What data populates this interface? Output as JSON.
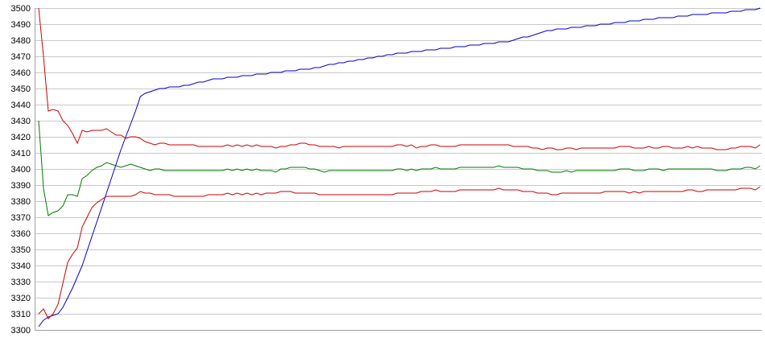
{
  "chart_data": {
    "type": "line",
    "title": "",
    "xlabel": "",
    "ylabel": "",
    "ylim": [
      3300,
      3500
    ],
    "yticks": [
      3300,
      3310,
      3320,
      3330,
      3340,
      3350,
      3360,
      3370,
      3380,
      3390,
      3400,
      3410,
      3420,
      3430,
      3440,
      3450,
      3460,
      3470,
      3480,
      3490,
      3500
    ],
    "grid": "horizontal",
    "legend": "none",
    "x": [
      0,
      1,
      2,
      3,
      4,
      5,
      6,
      7,
      8,
      9,
      10,
      11,
      12,
      13,
      14,
      15,
      16,
      17,
      18,
      19,
      20,
      21,
      22,
      23,
      24,
      25,
      26,
      27,
      28,
      29,
      30,
      31,
      32,
      33,
      34,
      35,
      36,
      37,
      38,
      39,
      40,
      41,
      42,
      43,
      44,
      45,
      46,
      47,
      48,
      49,
      50,
      51,
      52,
      53,
      54,
      55,
      56,
      57,
      58,
      59,
      60,
      61,
      62,
      63,
      64,
      65,
      66,
      67,
      68,
      69,
      70,
      71,
      72,
      73,
      74,
      75,
      76,
      77,
      78,
      79,
      80,
      81,
      82,
      83,
      84,
      85,
      86,
      87,
      88,
      89,
      90,
      91,
      92,
      93,
      94,
      95,
      96,
      97,
      98,
      99,
      100,
      101,
      102,
      103,
      104,
      105,
      106,
      107,
      108,
      109,
      110,
      111,
      112,
      113,
      114,
      115,
      116,
      117,
      118,
      119,
      120,
      121,
      122,
      123,
      124,
      125,
      126,
      127,
      128,
      129,
      130,
      131,
      132,
      133,
      134,
      135,
      136,
      137,
      138,
      139,
      140,
      141,
      142,
      143,
      144,
      145,
      146,
      147,
      148,
      149
    ],
    "series": [
      {
        "color": "#0000cc",
        "values": [
          3302,
          3306,
          3308,
          3309,
          3310,
          3314,
          3320,
          3326,
          3333,
          3340,
          3349,
          3358,
          3367,
          3376,
          3385,
          3394,
          3403,
          3412,
          3420,
          3428,
          3436,
          3445,
          3447,
          3448,
          3449,
          3450,
          3450,
          3451,
          3451,
          3451,
          3452,
          3452,
          3453,
          3454,
          3454,
          3455,
          3456,
          3456,
          3456,
          3457,
          3457,
          3457,
          3458,
          3458,
          3458,
          3459,
          3459,
          3459,
          3460,
          3460,
          3460,
          3461,
          3461,
          3461,
          3462,
          3462,
          3462,
          3463,
          3463,
          3464,
          3465,
          3465,
          3466,
          3466,
          3467,
          3467,
          3468,
          3468,
          3469,
          3469,
          3470,
          3470,
          3471,
          3471,
          3472,
          3472,
          3472,
          3473,
          3473,
          3473,
          3474,
          3474,
          3474,
          3475,
          3475,
          3475,
          3476,
          3476,
          3476,
          3477,
          3477,
          3477,
          3478,
          3478,
          3478,
          3479,
          3479,
          3479,
          3480,
          3481,
          3482,
          3482,
          3483,
          3484,
          3485,
          3486,
          3486,
          3487,
          3487,
          3487,
          3488,
          3488,
          3488,
          3489,
          3489,
          3489,
          3490,
          3490,
          3490,
          3491,
          3491,
          3491,
          3492,
          3492,
          3492,
          3493,
          3493,
          3493,
          3494,
          3494,
          3494,
          3494,
          3495,
          3495,
          3495,
          3496,
          3496,
          3496,
          3496,
          3497,
          3497,
          3497,
          3497,
          3498,
          3498,
          3498,
          3499,
          3499,
          3499,
          3500
        ]
      },
      {
        "color": "#cc0000",
        "values": [
          3500,
          3470,
          3436,
          3437,
          3436,
          3430,
          3427,
          3422,
          3416,
          3424,
          3423,
          3424,
          3424,
          3424,
          3425,
          3423,
          3421,
          3421,
          3419,
          3420,
          3420,
          3419,
          3417,
          3416,
          3415,
          3416,
          3416,
          3415,
          3415,
          3415,
          3415,
          3415,
          3415,
          3414,
          3414,
          3414,
          3414,
          3414,
          3414,
          3415,
          3414,
          3415,
          3414,
          3415,
          3414,
          3415,
          3414,
          3414,
          3414,
          3413,
          3414,
          3414,
          3415,
          3415,
          3416,
          3416,
          3415,
          3415,
          3414,
          3414,
          3414,
          3414,
          3413,
          3414,
          3414,
          3414,
          3414,
          3414,
          3414,
          3414,
          3414,
          3414,
          3414,
          3414,
          3415,
          3415,
          3414,
          3415,
          3413,
          3414,
          3414,
          3415,
          3415,
          3414,
          3414,
          3414,
          3414,
          3415,
          3415,
          3415,
          3415,
          3415,
          3415,
          3415,
          3415,
          3415,
          3415,
          3415,
          3414,
          3414,
          3414,
          3414,
          3413,
          3413,
          3412,
          3413,
          3413,
          3412,
          3412,
          3413,
          3413,
          3412,
          3413,
          3413,
          3413,
          3413,
          3413,
          3413,
          3413,
          3413,
          3414,
          3414,
          3414,
          3413,
          3413,
          3413,
          3414,
          3413,
          3413,
          3414,
          3414,
          3413,
          3413,
          3413,
          3414,
          3413,
          3414,
          3413,
          3413,
          3413,
          3412,
          3412,
          3412,
          3413,
          3413,
          3414,
          3414,
          3414,
          3413,
          3415
        ]
      },
      {
        "color": "#007a00",
        "values": [
          3430,
          3388,
          3371,
          3373,
          3374,
          3377,
          3384,
          3384,
          3383,
          3394,
          3396,
          3399,
          3401,
          3402,
          3404,
          3403,
          3402,
          3401,
          3402,
          3403,
          3402,
          3401,
          3400,
          3399,
          3400,
          3400,
          3399,
          3399,
          3399,
          3399,
          3399,
          3399,
          3399,
          3399,
          3399,
          3399,
          3399,
          3399,
          3399,
          3400,
          3399,
          3400,
          3399,
          3400,
          3399,
          3400,
          3399,
          3399,
          3399,
          3398,
          3400,
          3400,
          3401,
          3401,
          3401,
          3401,
          3400,
          3400,
          3399,
          3398,
          3399,
          3399,
          3399,
          3399,
          3399,
          3399,
          3399,
          3399,
          3399,
          3399,
          3399,
          3399,
          3399,
          3399,
          3400,
          3400,
          3399,
          3400,
          3399,
          3400,
          3400,
          3400,
          3401,
          3400,
          3400,
          3400,
          3400,
          3401,
          3401,
          3401,
          3401,
          3401,
          3401,
          3401,
          3401,
          3402,
          3401,
          3401,
          3401,
          3401,
          3400,
          3400,
          3400,
          3399,
          3399,
          3399,
          3398,
          3398,
          3398,
          3399,
          3398,
          3399,
          3399,
          3399,
          3399,
          3399,
          3399,
          3399,
          3399,
          3399,
          3400,
          3400,
          3400,
          3399,
          3399,
          3399,
          3400,
          3400,
          3400,
          3399,
          3400,
          3400,
          3400,
          3400,
          3400,
          3400,
          3400,
          3400,
          3400,
          3400,
          3399,
          3399,
          3399,
          3400,
          3400,
          3400,
          3401,
          3401,
          3400,
          3402
        ]
      },
      {
        "color": "#cc0000",
        "values": [
          3310,
          3313,
          3307,
          3310,
          3316,
          3329,
          3342,
          3347,
          3351,
          3364,
          3370,
          3376,
          3379,
          3381,
          3383,
          3383,
          3383,
          3383,
          3383,
          3383,
          3384,
          3386,
          3385,
          3385,
          3384,
          3384,
          3384,
          3384,
          3383,
          3383,
          3383,
          3383,
          3383,
          3383,
          3383,
          3384,
          3384,
          3384,
          3384,
          3385,
          3384,
          3385,
          3384,
          3385,
          3384,
          3385,
          3384,
          3385,
          3385,
          3385,
          3386,
          3386,
          3386,
          3385,
          3385,
          3385,
          3385,
          3385,
          3384,
          3384,
          3384,
          3384,
          3384,
          3384,
          3384,
          3384,
          3384,
          3384,
          3384,
          3384,
          3384,
          3384,
          3384,
          3384,
          3385,
          3385,
          3385,
          3385,
          3385,
          3386,
          3386,
          3386,
          3387,
          3386,
          3386,
          3386,
          3386,
          3387,
          3387,
          3387,
          3387,
          3387,
          3387,
          3387,
          3387,
          3388,
          3387,
          3387,
          3387,
          3387,
          3386,
          3386,
          3386,
          3385,
          3385,
          3385,
          3384,
          3384,
          3385,
          3385,
          3385,
          3385,
          3385,
          3385,
          3385,
          3385,
          3385,
          3386,
          3386,
          3386,
          3386,
          3386,
          3385,
          3386,
          3385,
          3386,
          3386,
          3386,
          3386,
          3386,
          3386,
          3386,
          3386,
          3386,
          3387,
          3387,
          3386,
          3386,
          3387,
          3387,
          3387,
          3387,
          3387,
          3387,
          3387,
          3388,
          3388,
          3388,
          3387,
          3389
        ]
      }
    ]
  }
}
